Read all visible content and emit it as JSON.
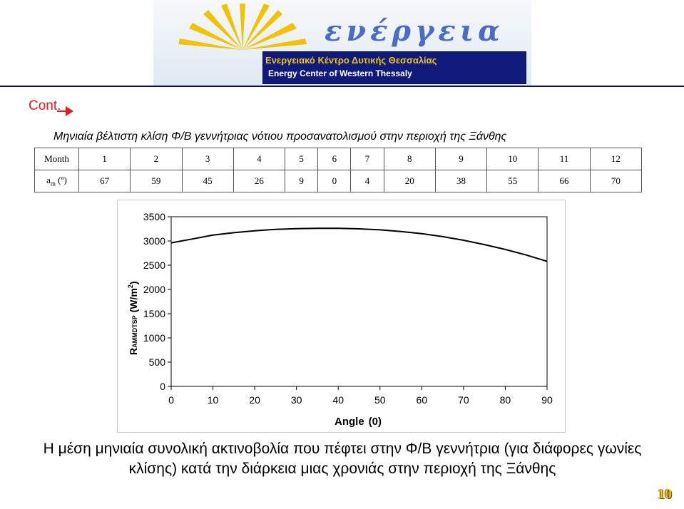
{
  "header": {
    "logo_text": "ενέργεια",
    "subtitle_greek": "Ενεργειακό Κέντρο Δυτικής Θεσσαλίας",
    "subtitle_english": "Energy Center of Western Thessaly"
  },
  "cont_label": "Cont.",
  "table": {
    "title": "Μηνιαία βέλτιστη κλίση Φ/Β γεννήτριας νότιου προσανατολισμού στην περιοχή της Ξάνθης",
    "row_labels": [
      "Month",
      "a",
      "m",
      "(º)"
    ],
    "months": [
      "1",
      "2",
      "3",
      "4",
      "5",
      "6",
      "7",
      "8",
      "9",
      "10",
      "11",
      "12"
    ],
    "angles": [
      "67",
      "59",
      "45",
      "26",
      "9",
      "0",
      "4",
      "20",
      "38",
      "55",
      "66",
      "70"
    ]
  },
  "chart_data": {
    "type": "line",
    "xlabel": "Angle",
    "xlabel_unit": "(0)",
    "ylabel_prefix": "R",
    "ylabel_sub": "AMMDTSP",
    "ylabel_unit": "(W/m",
    "ylabel_exp": "2",
    "ylabel_close": ")",
    "xlim": [
      0,
      90
    ],
    "ylim": [
      0,
      3500
    ],
    "x_ticks": [
      "0",
      "10",
      "20",
      "30",
      "40",
      "50",
      "60",
      "70",
      "80",
      "90"
    ],
    "y_ticks": [
      "0",
      "500",
      "1000",
      "1500",
      "2000",
      "2500",
      "3000",
      "3500"
    ],
    "x": [
      0,
      5,
      10,
      15,
      20,
      25,
      30,
      35,
      40,
      45,
      50,
      55,
      60,
      65,
      70,
      75,
      80,
      85,
      90
    ],
    "series": [
      {
        "values": [
          2960,
          3040,
          3120,
          3170,
          3210,
          3240,
          3255,
          3260,
          3260,
          3250,
          3230,
          3195,
          3150,
          3090,
          3015,
          2925,
          2825,
          2710,
          2580
        ]
      }
    ],
    "line_color": "#000000"
  },
  "caption": "Η μέση μηνιαία συνολική ακτινοβολία που πέφτει στην Φ/Β γεννήτρια (για διάφορες γωνίες κλίσης) κατά την διάρκεια μιας χρονιάς στην περιοχή της Ξάνθης",
  "page_number": "10",
  "colors": {
    "cont": "#e31c1c",
    "logo_box": "#101a7a",
    "logo_greek": "#f1c40f",
    "page_number": "#f0c419"
  }
}
